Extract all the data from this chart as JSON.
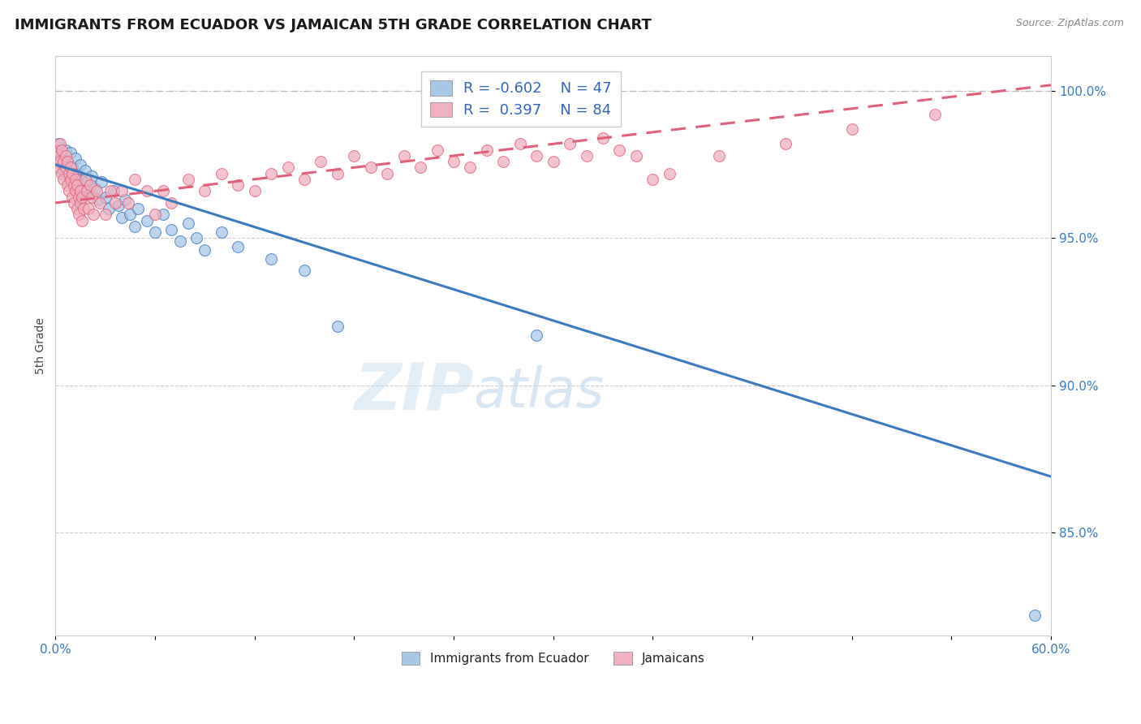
{
  "title": "IMMIGRANTS FROM ECUADOR VS JAMAICAN 5TH GRADE CORRELATION CHART",
  "source_text": "Source: ZipAtlas.com",
  "ylabel": "5th Grade",
  "xlim": [
    0.0,
    0.6
  ],
  "ylim": [
    0.815,
    1.012
  ],
  "x_ticks": [
    0.0,
    0.06,
    0.12,
    0.18,
    0.24,
    0.3,
    0.36,
    0.42,
    0.48,
    0.54,
    0.6
  ],
  "x_tick_labels": [
    "0.0%",
    "",
    "",
    "",
    "",
    "",
    "",
    "",
    "",
    "",
    "60.0%"
  ],
  "y_ticks": [
    0.85,
    0.9,
    0.95,
    1.0
  ],
  "y_tick_labels": [
    "85.0%",
    "90.0%",
    "95.0%",
    "100.0%"
  ],
  "legend_r1": "R = -0.602",
  "legend_n1": "N = 47",
  "legend_r2": "R =  0.397",
  "legend_n2": "N = 84",
  "color_blue": "#a8c8e8",
  "color_pink": "#f0b0c0",
  "line_blue": "#3a7abf",
  "line_pink": "#e0607a",
  "grid_color": "#cccccc",
  "top_dash_color": "#bbbbbb",
  "ecuador_line": [
    0.0,
    0.975,
    0.6,
    0.869
  ],
  "jamaican_line": [
    0.0,
    0.962,
    0.6,
    1.002
  ],
  "ecuador_scatter": [
    [
      0.002,
      0.982
    ],
    [
      0.003,
      0.978
    ],
    [
      0.004,
      0.975
    ],
    [
      0.005,
      0.973
    ],
    [
      0.006,
      0.98
    ],
    [
      0.007,
      0.976
    ],
    [
      0.008,
      0.971
    ],
    [
      0.009,
      0.979
    ],
    [
      0.01,
      0.974
    ],
    [
      0.011,
      0.969
    ],
    [
      0.012,
      0.977
    ],
    [
      0.013,
      0.972
    ],
    [
      0.014,
      0.968
    ],
    [
      0.015,
      0.975
    ],
    [
      0.016,
      0.97
    ],
    [
      0.017,
      0.966
    ],
    [
      0.018,
      0.973
    ],
    [
      0.019,
      0.969
    ],
    [
      0.02,
      0.965
    ],
    [
      0.022,
      0.971
    ],
    [
      0.024,
      0.967
    ],
    [
      0.026,
      0.963
    ],
    [
      0.028,
      0.969
    ],
    [
      0.03,
      0.964
    ],
    [
      0.032,
      0.96
    ],
    [
      0.035,
      0.966
    ],
    [
      0.038,
      0.961
    ],
    [
      0.04,
      0.957
    ],
    [
      0.042,
      0.963
    ],
    [
      0.045,
      0.958
    ],
    [
      0.048,
      0.954
    ],
    [
      0.05,
      0.96
    ],
    [
      0.055,
      0.956
    ],
    [
      0.06,
      0.952
    ],
    [
      0.065,
      0.958
    ],
    [
      0.07,
      0.953
    ],
    [
      0.075,
      0.949
    ],
    [
      0.08,
      0.955
    ],
    [
      0.085,
      0.95
    ],
    [
      0.09,
      0.946
    ],
    [
      0.1,
      0.952
    ],
    [
      0.11,
      0.947
    ],
    [
      0.13,
      0.943
    ],
    [
      0.15,
      0.939
    ],
    [
      0.17,
      0.92
    ],
    [
      0.29,
      0.917
    ],
    [
      0.59,
      0.822
    ]
  ],
  "jamaican_scatter": [
    [
      0.001,
      0.98
    ],
    [
      0.002,
      0.978
    ],
    [
      0.002,
      0.974
    ],
    [
      0.003,
      0.982
    ],
    [
      0.003,
      0.976
    ],
    [
      0.004,
      0.972
    ],
    [
      0.004,
      0.98
    ],
    [
      0.005,
      0.976
    ],
    [
      0.005,
      0.97
    ],
    [
      0.006,
      0.978
    ],
    [
      0.006,
      0.974
    ],
    [
      0.007,
      0.968
    ],
    [
      0.007,
      0.976
    ],
    [
      0.008,
      0.972
    ],
    [
      0.008,
      0.966
    ],
    [
      0.009,
      0.974
    ],
    [
      0.009,
      0.97
    ],
    [
      0.01,
      0.964
    ],
    [
      0.01,
      0.972
    ],
    [
      0.011,
      0.968
    ],
    [
      0.011,
      0.962
    ],
    [
      0.012,
      0.97
    ],
    [
      0.012,
      0.966
    ],
    [
      0.013,
      0.96
    ],
    [
      0.013,
      0.968
    ],
    [
      0.014,
      0.964
    ],
    [
      0.014,
      0.958
    ],
    [
      0.015,
      0.966
    ],
    [
      0.015,
      0.962
    ],
    [
      0.016,
      0.956
    ],
    [
      0.016,
      0.964
    ],
    [
      0.017,
      0.96
    ],
    [
      0.018,
      0.97
    ],
    [
      0.019,
      0.966
    ],
    [
      0.02,
      0.96
    ],
    [
      0.021,
      0.968
    ],
    [
      0.022,
      0.964
    ],
    [
      0.023,
      0.958
    ],
    [
      0.025,
      0.966
    ],
    [
      0.027,
      0.962
    ],
    [
      0.03,
      0.958
    ],
    [
      0.033,
      0.966
    ],
    [
      0.036,
      0.962
    ],
    [
      0.04,
      0.966
    ],
    [
      0.044,
      0.962
    ],
    [
      0.048,
      0.97
    ],
    [
      0.055,
      0.966
    ],
    [
      0.06,
      0.958
    ],
    [
      0.065,
      0.966
    ],
    [
      0.07,
      0.962
    ],
    [
      0.08,
      0.97
    ],
    [
      0.09,
      0.966
    ],
    [
      0.1,
      0.972
    ],
    [
      0.11,
      0.968
    ],
    [
      0.12,
      0.966
    ],
    [
      0.13,
      0.972
    ],
    [
      0.14,
      0.974
    ],
    [
      0.15,
      0.97
    ],
    [
      0.16,
      0.976
    ],
    [
      0.17,
      0.972
    ],
    [
      0.18,
      0.978
    ],
    [
      0.19,
      0.974
    ],
    [
      0.2,
      0.972
    ],
    [
      0.21,
      0.978
    ],
    [
      0.22,
      0.974
    ],
    [
      0.23,
      0.98
    ],
    [
      0.24,
      0.976
    ],
    [
      0.25,
      0.974
    ],
    [
      0.26,
      0.98
    ],
    [
      0.27,
      0.976
    ],
    [
      0.28,
      0.982
    ],
    [
      0.29,
      0.978
    ],
    [
      0.3,
      0.976
    ],
    [
      0.31,
      0.982
    ],
    [
      0.32,
      0.978
    ],
    [
      0.33,
      0.984
    ],
    [
      0.34,
      0.98
    ],
    [
      0.35,
      0.978
    ],
    [
      0.36,
      0.97
    ],
    [
      0.37,
      0.972
    ],
    [
      0.4,
      0.978
    ],
    [
      0.44,
      0.982
    ],
    [
      0.48,
      0.987
    ],
    [
      0.53,
      0.992
    ]
  ],
  "watermark_zip": "ZIP",
  "watermark_atlas": "atlas",
  "watermark_color": "#cce0f0",
  "watermark_alpha": 0.55
}
